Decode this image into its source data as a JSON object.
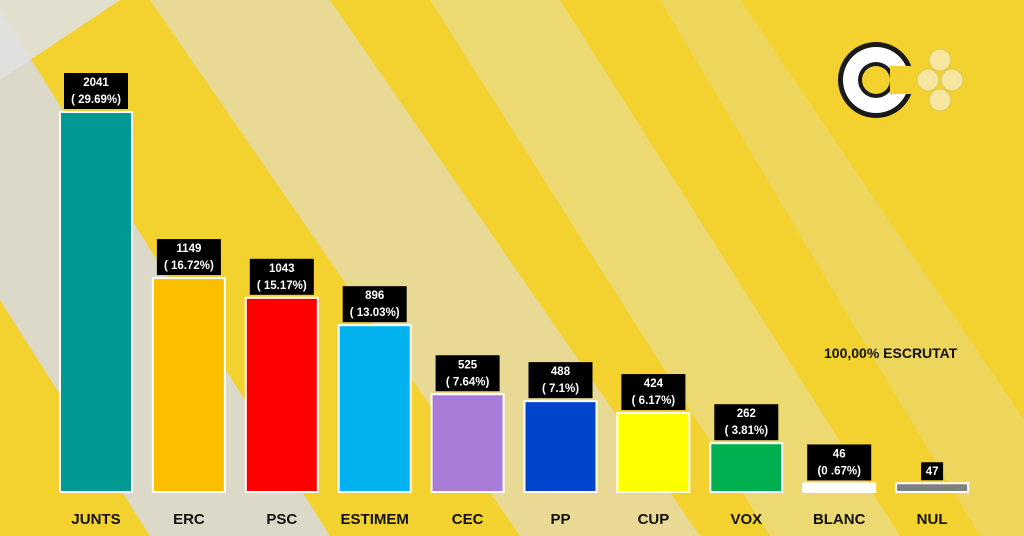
{
  "status_text": "100,00% ESCRUTAT",
  "chart_data": {
    "type": "bar",
    "categories": [
      "JUNTS",
      "ERC",
      "PSC",
      "ESTIMEM",
      "CEC",
      "PP",
      "CUP",
      "VOX",
      "BLANC",
      "NUL"
    ],
    "values": [
      2041,
      1149,
      1043,
      896,
      525,
      488,
      424,
      262,
      46,
      47
    ],
    "value_labels": [
      "2041",
      "1149",
      "1043",
      "896",
      "525",
      "488",
      "424",
      "262",
      "46",
      "47"
    ],
    "percent_labels": [
      "( 29.69%)",
      "( 16.72%)",
      "( 15.17%)",
      "( 13.03%)",
      "( 7.64%)",
      "( 7.1%)",
      "( 6.17%)",
      "( 3.81%)",
      "(0 .67%)",
      ""
    ],
    "colors": [
      "#009a93",
      "#fbbf00",
      "#ff0000",
      "#00b2ee",
      "#a77bd6",
      "#0044cc",
      "#ffff00",
      "#00b050",
      "#ffffff",
      "#7f7f7f"
    ],
    "title": "",
    "xlabel": "",
    "ylabel": "",
    "ylim": [
      0,
      2041
    ],
    "grid": false,
    "legend": "none"
  }
}
